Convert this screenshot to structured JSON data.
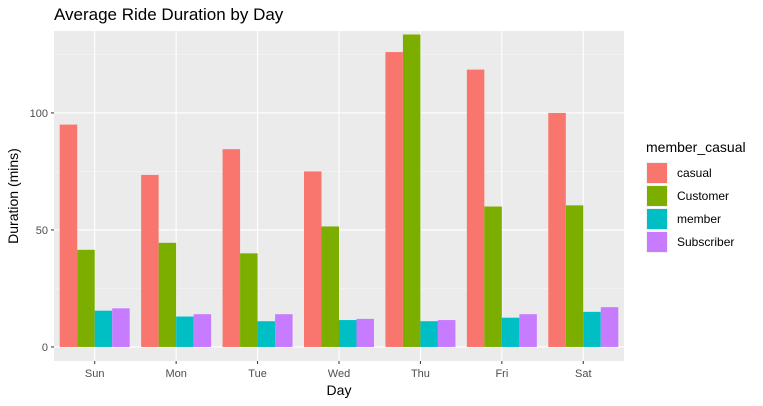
{
  "chart_data": {
    "type": "bar",
    "title": "Average Ride Duration by Day",
    "xlabel": "Day",
    "ylabel": "Duration (mins)",
    "categories": [
      "Sun",
      "Mon",
      "Tue",
      "Wed",
      "Thu",
      "Fri",
      "Sat"
    ],
    "yticks": [
      "0",
      "50",
      "100"
    ],
    "ylim": [
      -6,
      135
    ],
    "grid": true,
    "legend_title": "member_casual",
    "legend_position": "right",
    "series": [
      {
        "name": "casual",
        "color": "#F8766D",
        "values": [
          95,
          73.5,
          84.5,
          75,
          126,
          118.5,
          100
        ]
      },
      {
        "name": "Customer",
        "color": "#7CAE00",
        "values": [
          41.5,
          44.5,
          40,
          51.5,
          133.5,
          60,
          60.5
        ]
      },
      {
        "name": "member",
        "color": "#00BFC4",
        "values": [
          15.5,
          13,
          11,
          11.5,
          11,
          12.5,
          15
        ]
      },
      {
        "name": "Subscriber",
        "color": "#C77CFF",
        "values": [
          16.5,
          14,
          14,
          12,
          11.5,
          14,
          17
        ]
      }
    ]
  }
}
